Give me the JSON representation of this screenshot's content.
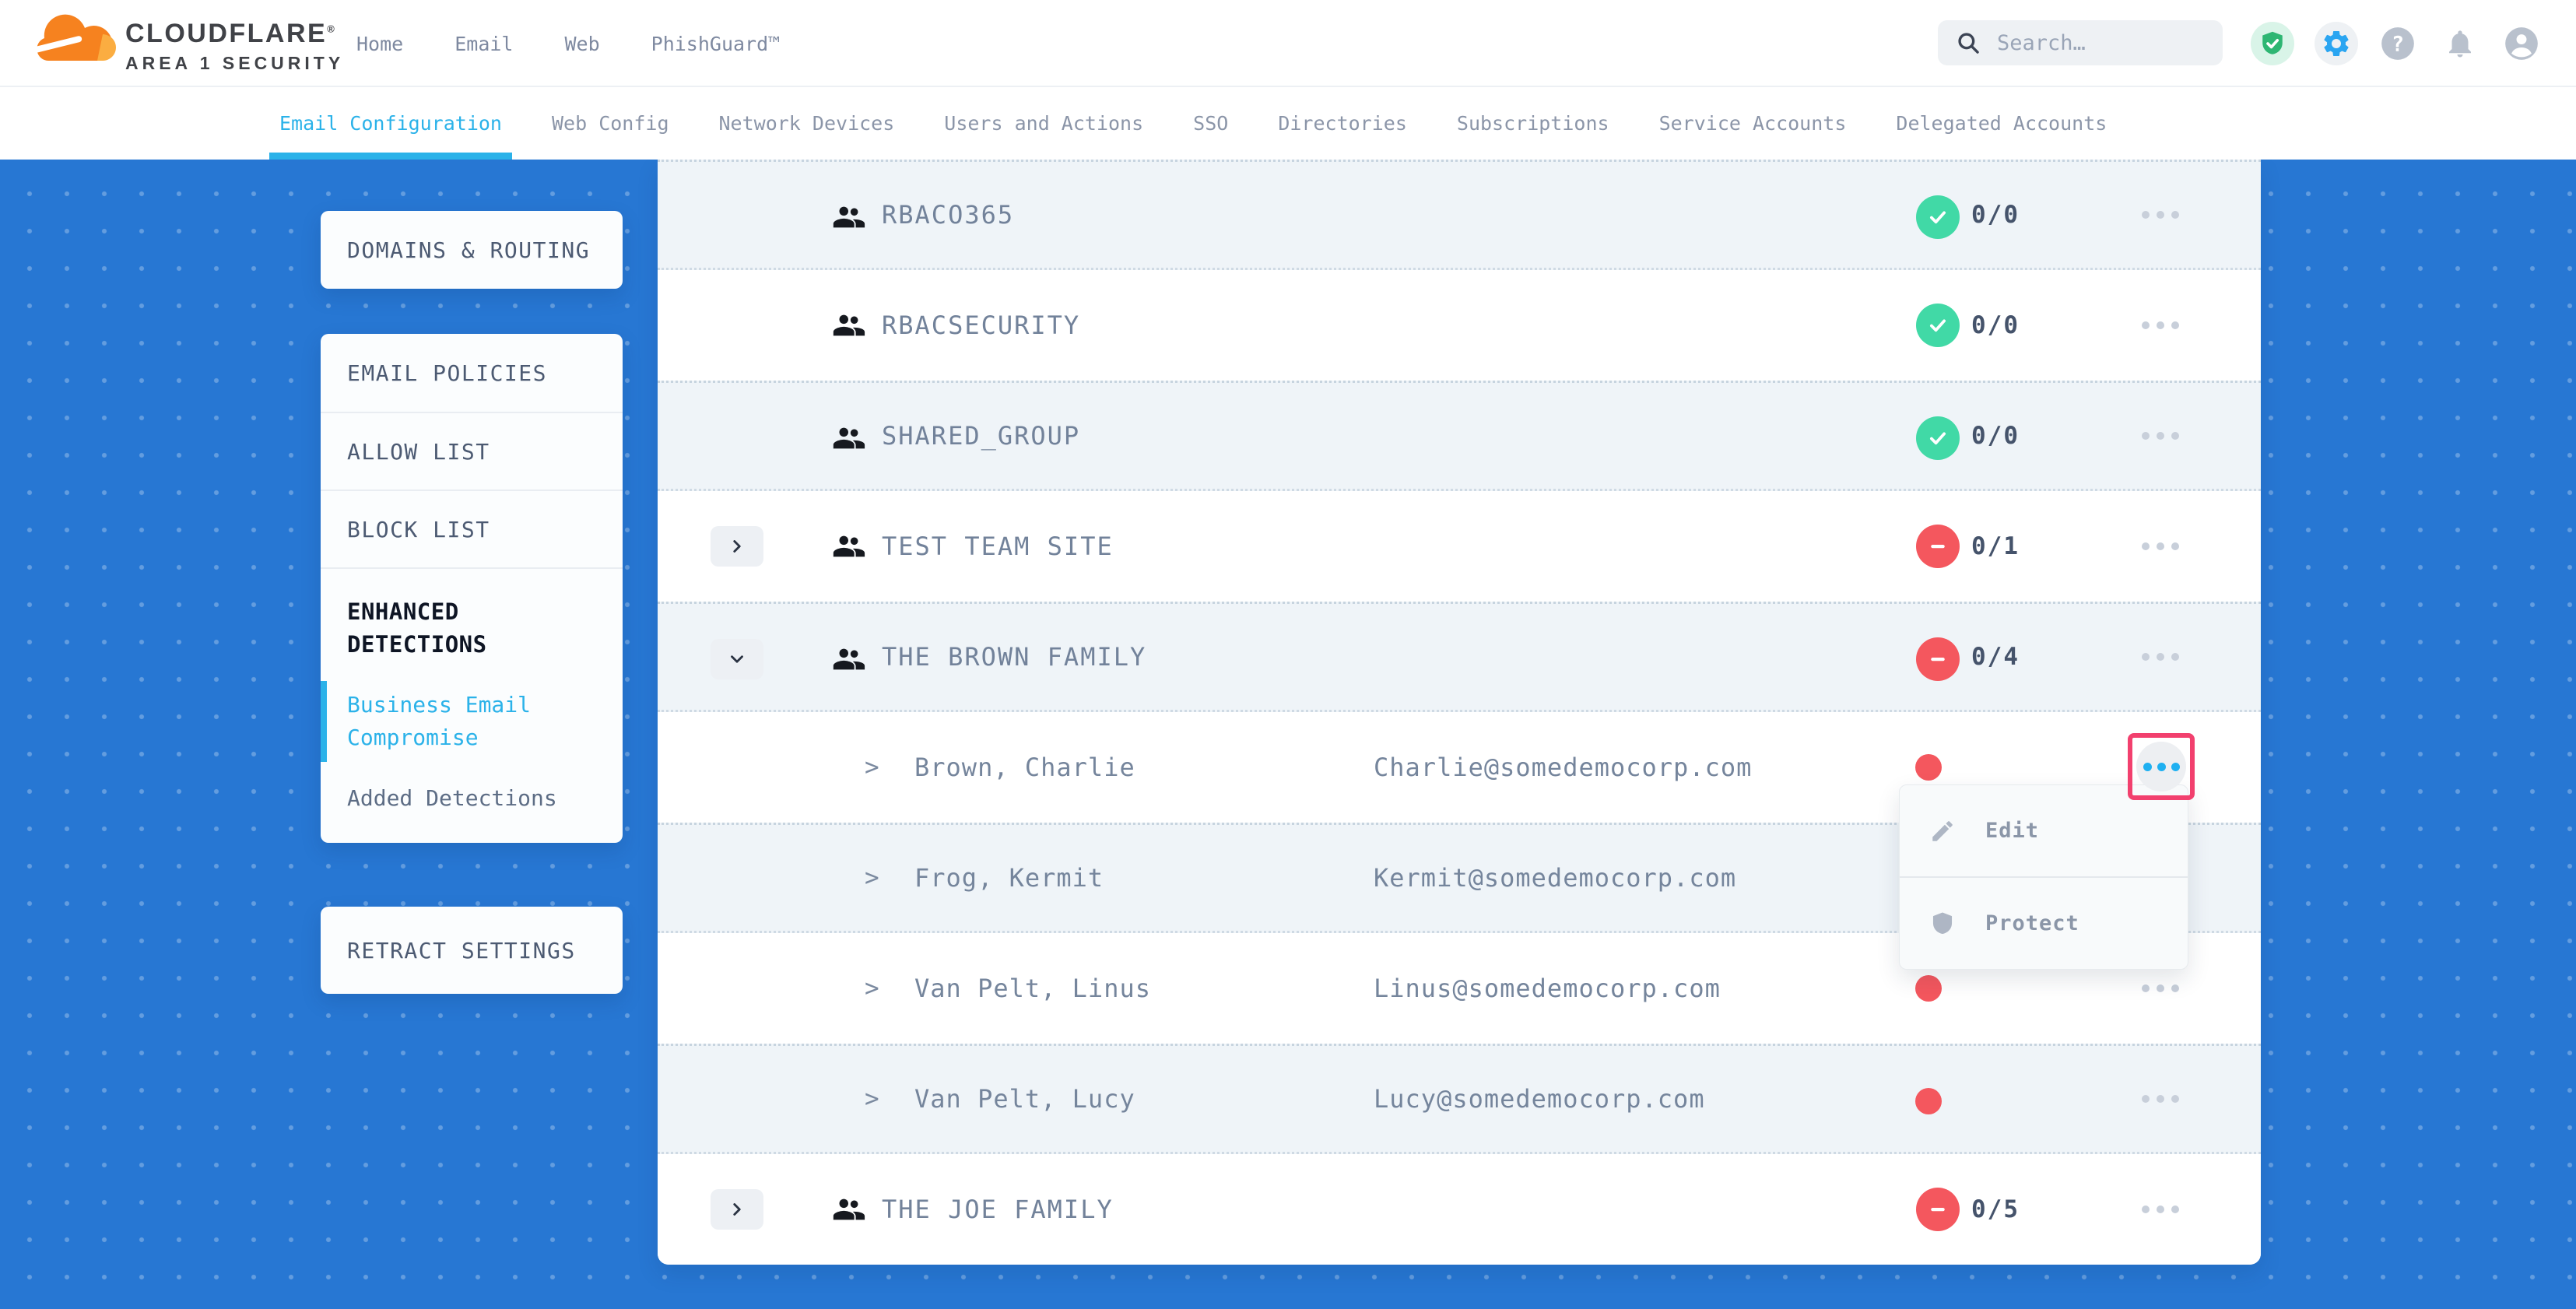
{
  "header": {
    "logo": {
      "brand": "CLOUDFLARE",
      "mark": "®",
      "subtitle": "AREA 1 SECURITY"
    },
    "nav": [
      {
        "id": "home",
        "label": "Home"
      },
      {
        "id": "email",
        "label": "Email"
      },
      {
        "id": "web",
        "label": "Web"
      },
      {
        "id": "phishguard",
        "label": "PhishGuard™"
      }
    ],
    "search": {
      "placeholder": "Search…"
    },
    "status_icons": [
      "shield-check-icon",
      "gear-icon",
      "help-icon",
      "bell-icon",
      "account-icon"
    ]
  },
  "tabs": [
    {
      "id": "email-configuration",
      "label": "Email Configuration",
      "active": true
    },
    {
      "id": "web-config",
      "label": "Web Config",
      "active": false
    },
    {
      "id": "network-devices",
      "label": "Network Devices",
      "active": false
    },
    {
      "id": "users-and-actions",
      "label": "Users and Actions",
      "active": false
    },
    {
      "id": "sso",
      "label": "SSO",
      "active": false
    },
    {
      "id": "directories",
      "label": "Directories",
      "active": false
    },
    {
      "id": "subscriptions",
      "label": "Subscriptions",
      "active": false
    },
    {
      "id": "service-accounts",
      "label": "Service Accounts",
      "active": false
    },
    {
      "id": "delegated-accounts",
      "label": "Delegated Accounts",
      "active": false
    }
  ],
  "sidebar": {
    "cards": [
      {
        "items": [
          {
            "type": "link",
            "id": "domains-routing",
            "label": "DOMAINS & ROUTING"
          }
        ]
      },
      {
        "items": [
          {
            "type": "link",
            "id": "email-policies",
            "label": "EMAIL POLICIES"
          },
          {
            "type": "link",
            "id": "allow-list",
            "label": "ALLOW LIST",
            "divider": true
          },
          {
            "type": "link",
            "id": "block-list",
            "label": "BLOCK LIST",
            "divider": true
          },
          {
            "type": "header",
            "id": "enhanced-detections",
            "label": "ENHANCED DETECTIONS",
            "divider": true
          },
          {
            "type": "sublink",
            "id": "business-email-compromise",
            "label": "Business Email Compromise",
            "active": true
          },
          {
            "type": "sublink",
            "id": "added-detections",
            "label": "Added Detections",
            "active": false
          }
        ]
      },
      {
        "items": [
          {
            "type": "link",
            "id": "retract-settings",
            "label": "RETRACT SETTINGS"
          }
        ]
      }
    ]
  },
  "table": {
    "rows": [
      {
        "kind": "group",
        "name": "RBACO365",
        "status": "pass",
        "count": "0/0"
      },
      {
        "kind": "group",
        "name": "RBACSECURITY",
        "status": "pass",
        "count": "0/0"
      },
      {
        "kind": "group",
        "name": "SHARED_GROUP",
        "status": "pass",
        "count": "0/0"
      },
      {
        "kind": "group",
        "name": "TEST TEAM SITE",
        "expand": "collapsed",
        "status": "fail",
        "count": "0/1"
      },
      {
        "kind": "group",
        "name": "THE BROWN FAMILY",
        "expand": "expanded",
        "status": "fail",
        "count": "0/4"
      },
      {
        "kind": "member",
        "name": "Brown, Charlie",
        "email": "Charlie@somedemocorp.com",
        "status": "dot",
        "menu_open": true
      },
      {
        "kind": "member",
        "name": "Frog, Kermit",
        "email": "Kermit@somedemocorp.com",
        "status": "dot"
      },
      {
        "kind": "member",
        "name": "Van Pelt, Linus",
        "email": "Linus@somedemocorp.com",
        "status": "dot"
      },
      {
        "kind": "member",
        "name": "Van Pelt, Lucy",
        "email": "Lucy@somedemocorp.com",
        "status": "dot"
      },
      {
        "kind": "group",
        "name": "THE JOE FAMILY",
        "expand": "collapsed",
        "status": "fail",
        "count": "0/5"
      }
    ]
  },
  "menu": {
    "items": [
      {
        "id": "edit",
        "label": "Edit",
        "icon": "pencil-icon"
      },
      {
        "id": "protect",
        "label": "Protect",
        "icon": "shield-icon"
      }
    ]
  },
  "colors": {
    "accent_cyan": "#2bb2e9",
    "background_blue": "#2777d3",
    "pass_green": "#41d9a6",
    "fail_red": "#f4575e",
    "highlight_pink": "#f2406e",
    "gear_blue": "#2aa5f1",
    "shield_green": "#2eb673"
  }
}
